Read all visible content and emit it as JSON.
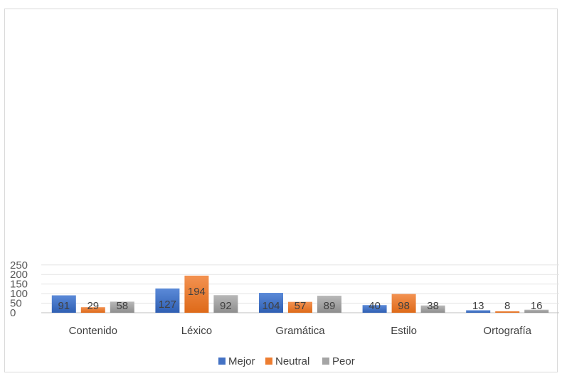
{
  "chart_data": {
    "type": "bar",
    "categories": [
      "Contenido",
      "Léxico",
      "Gramática",
      "Estilo",
      "Ortografía"
    ],
    "series": [
      {
        "name": "Mejor",
        "values": [
          91,
          127,
          104,
          40,
          13
        ],
        "color": "#4472c4"
      },
      {
        "name": "Neutral",
        "values": [
          29,
          194,
          57,
          98,
          8
        ],
        "color": "#ed7d31"
      },
      {
        "name": "Peor",
        "values": [
          58,
          92,
          89,
          38,
          16
        ],
        "color": "#a5a5a5"
      }
    ],
    "ylim": [
      0,
      250
    ],
    "yticks": [
      0,
      50,
      100,
      150,
      200,
      250
    ],
    "grid": true,
    "legend": "bottom",
    "data_labels": true
  }
}
